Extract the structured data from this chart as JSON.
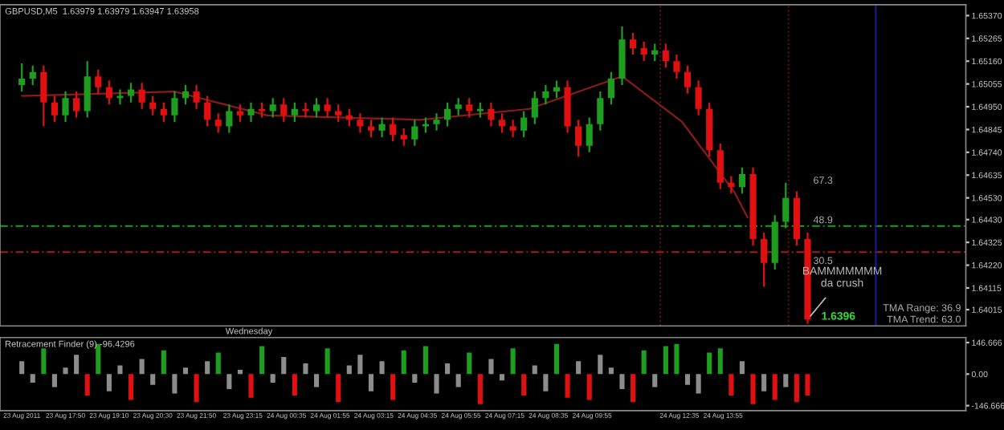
{
  "chart_data": [
    {
      "type": "candlestick",
      "title": "GBPUSD,M5  1.63979 1.63979 1.63947 1.63958",
      "x": [
        "2011-08-23T16:30",
        "2011-08-23T16:50",
        "2011-08-23T17:10",
        "2011-08-23T17:30",
        "2011-08-23T17:50",
        "2011-08-23T18:10",
        "2011-08-23T18:30",
        "2011-08-23T18:50",
        "2011-08-23T19:10",
        "2011-08-23T19:30",
        "2011-08-23T19:50",
        "2011-08-23T20:10",
        "2011-08-23T20:30",
        "2011-08-23T20:50",
        "2011-08-23T21:10",
        "2011-08-23T21:30",
        "2011-08-23T21:50",
        "2011-08-23T22:10",
        "2011-08-23T22:30",
        "2011-08-23T22:50",
        "2011-08-23T23:10",
        "2011-08-23T23:30",
        "2011-08-23T23:50",
        "2011-08-24T00:10",
        "2011-08-24T00:30",
        "2011-08-24T00:50",
        "2011-08-24T01:10",
        "2011-08-24T01:30",
        "2011-08-24T01:50",
        "2011-08-24T02:10",
        "2011-08-24T02:30",
        "2011-08-24T02:50",
        "2011-08-24T03:10",
        "2011-08-24T03:30",
        "2011-08-24T03:50",
        "2011-08-24T04:10",
        "2011-08-24T04:30",
        "2011-08-24T04:50",
        "2011-08-24T05:10",
        "2011-08-24T05:30",
        "2011-08-24T05:50",
        "2011-08-24T06:10",
        "2011-08-24T06:30",
        "2011-08-24T06:50",
        "2011-08-24T07:10",
        "2011-08-24T07:30",
        "2011-08-24T07:50",
        "2011-08-24T08:10",
        "2011-08-24T08:30",
        "2011-08-24T08:50",
        "2011-08-24T09:10",
        "2011-08-24T09:30",
        "2011-08-24T09:50",
        "2011-08-24T10:10",
        "2011-08-24T10:30",
        "2011-08-24T10:50",
        "2011-08-24T11:10",
        "2011-08-24T11:30",
        "2011-08-24T11:50",
        "2011-08-24T12:10",
        "2011-08-24T12:30",
        "2011-08-24T12:50",
        "2011-08-24T13:10",
        "2011-08-24T13:30",
        "2011-08-24T13:50",
        "2011-08-24T14:10",
        "2011-08-24T14:30",
        "2011-08-24T14:50",
        "2011-08-24T15:10",
        "2011-08-24T15:30",
        "2011-08-24T15:50",
        "2011-08-24T16:10",
        "2011-08-24T16:30"
      ],
      "ohlc": [
        [
          1.6505,
          1.6515,
          1.6502,
          1.6508
        ],
        [
          1.6508,
          1.6514,
          1.6505,
          1.6511
        ],
        [
          1.6511,
          1.6514,
          1.6486,
          1.6497
        ],
        [
          1.6497,
          1.65,
          1.6488,
          1.6491
        ],
        [
          1.6491,
          1.6502,
          1.6488,
          1.6499
        ],
        [
          1.6499,
          1.6502,
          1.649,
          1.6493
        ],
        [
          1.6493,
          1.6516,
          1.649,
          1.6509
        ],
        [
          1.6509,
          1.6512,
          1.6501,
          1.6504
        ],
        [
          1.6504,
          1.6507,
          1.6496,
          1.6499
        ],
        [
          1.6499,
          1.6503,
          1.6496,
          1.65
        ],
        [
          1.65,
          1.6506,
          1.6497,
          1.6503
        ],
        [
          1.6503,
          1.6506,
          1.6494,
          1.6497
        ],
        [
          1.6497,
          1.65,
          1.6491,
          1.6494
        ],
        [
          1.6494,
          1.6497,
          1.6488,
          1.6491
        ],
        [
          1.6491,
          1.6502,
          1.6488,
          1.6499
        ],
        [
          1.6499,
          1.6505,
          1.6496,
          1.6502
        ],
        [
          1.6502,
          1.6505,
          1.6494,
          1.6497
        ],
        [
          1.6497,
          1.65,
          1.6486,
          1.6489
        ],
        [
          1.6489,
          1.6492,
          1.6483,
          1.6486
        ],
        [
          1.6486,
          1.6496,
          1.6483,
          1.6493
        ],
        [
          1.6493,
          1.6496,
          1.6488,
          1.6491
        ],
        [
          1.6491,
          1.6497,
          1.6488,
          1.6494
        ],
        [
          1.6494,
          1.6497,
          1.649,
          1.6493
        ],
        [
          1.6493,
          1.6499,
          1.649,
          1.6496
        ],
        [
          1.6496,
          1.6499,
          1.6488,
          1.6491
        ],
        [
          1.6491,
          1.6497,
          1.6488,
          1.6494
        ],
        [
          1.6494,
          1.6497,
          1.649,
          1.6493
        ],
        [
          1.6493,
          1.6499,
          1.649,
          1.6496
        ],
        [
          1.6496,
          1.6499,
          1.649,
          1.6493
        ],
        [
          1.6493,
          1.6496,
          1.6488,
          1.6491
        ],
        [
          1.6491,
          1.6494,
          1.6486,
          1.6489
        ],
        [
          1.6489,
          1.6492,
          1.6483,
          1.6486
        ],
        [
          1.6486,
          1.6489,
          1.6481,
          1.6484
        ],
        [
          1.6484,
          1.649,
          1.6481,
          1.6487
        ],
        [
          1.6487,
          1.649,
          1.6479,
          1.6482
        ],
        [
          1.6482,
          1.6485,
          1.6477,
          1.648
        ],
        [
          1.648,
          1.6489,
          1.6477,
          1.6486
        ],
        [
          1.6486,
          1.649,
          1.6483,
          1.6487
        ],
        [
          1.6487,
          1.6492,
          1.6484,
          1.6489
        ],
        [
          1.6489,
          1.6497,
          1.6486,
          1.6494
        ],
        [
          1.6494,
          1.6499,
          1.6491,
          1.6496
        ],
        [
          1.6496,
          1.6499,
          1.649,
          1.6493
        ],
        [
          1.6493,
          1.6497,
          1.649,
          1.6494
        ],
        [
          1.6494,
          1.6497,
          1.6486,
          1.6489
        ],
        [
          1.6489,
          1.6492,
          1.6483,
          1.6486
        ],
        [
          1.6486,
          1.6489,
          1.6481,
          1.6484
        ],
        [
          1.6484,
          1.6493,
          1.6481,
          1.649
        ],
        [
          1.649,
          1.6502,
          1.6487,
          1.6499
        ],
        [
          1.6499,
          1.6505,
          1.6496,
          1.6502
        ],
        [
          1.6502,
          1.6507,
          1.6499,
          1.6504
        ],
        [
          1.6504,
          1.6507,
          1.6483,
          1.6486
        ],
        [
          1.6486,
          1.6489,
          1.6472,
          1.6477
        ],
        [
          1.6477,
          1.649,
          1.6474,
          1.6487
        ],
        [
          1.6487,
          1.6502,
          1.6484,
          1.6499
        ],
        [
          1.6499,
          1.6511,
          1.6496,
          1.6508
        ],
        [
          1.6508,
          1.6532,
          1.6505,
          1.6526
        ],
        [
          1.6526,
          1.6529,
          1.6519,
          1.6522
        ],
        [
          1.6522,
          1.6525,
          1.6516,
          1.6519
        ],
        [
          1.6519,
          1.6524,
          1.6516,
          1.6521
        ],
        [
          1.6521,
          1.6524,
          1.6513,
          1.6516
        ],
        [
          1.6516,
          1.6519,
          1.6508,
          1.6511
        ],
        [
          1.6511,
          1.6514,
          1.6501,
          1.6504
        ],
        [
          1.6504,
          1.6507,
          1.6491,
          1.6494
        ],
        [
          1.6494,
          1.6497,
          1.6472,
          1.6475
        ],
        [
          1.6475,
          1.6478,
          1.6457,
          1.646
        ],
        [
          1.646,
          1.6463,
          1.6455,
          1.6458
        ],
        [
          1.6458,
          1.6467,
          1.6455,
          1.6464
        ],
        [
          1.6464,
          1.6467,
          1.6431,
          1.6434
        ],
        [
          1.6434,
          1.6437,
          1.6412,
          1.6423
        ],
        [
          1.6423,
          1.6445,
          1.642,
          1.6442
        ],
        [
          1.6442,
          1.646,
          1.6439,
          1.6453
        ],
        [
          1.6453,
          1.6456,
          1.6431,
          1.6434
        ],
        [
          1.6434,
          1.6437,
          1.6395,
          1.6397
        ]
      ],
      "series": [
        {
          "type": "line",
          "color": "#8b1a1a",
          "x": [
            "2011-08-23T16:30",
            "2011-08-23T21:10",
            "2011-08-24T00:00",
            "2011-08-24T04:40",
            "2011-08-24T08:00",
            "2011-08-24T10:50",
            "2011-08-24T12:40",
            "2011-08-24T14:15",
            "2011-08-24T14:40"
          ],
          "values": [
            1.65,
            1.6502,
            1.6491,
            1.6489,
            1.6494,
            1.6509,
            1.6488,
            1.6456,
            1.6444
          ]
        }
      ],
      "xlim": [
        "2011-08-23T15:50",
        "2011-08-24T21:20"
      ],
      "ylim": [
        1.6394,
        1.6542
      ],
      "yticks": [
        {
          "value": 1.6537,
          "label": "1.65370"
        },
        {
          "value": 1.65265,
          "label": "1.65265"
        },
        {
          "value": 1.6516,
          "label": "1.65160"
        },
        {
          "value": 1.65055,
          "label": "1.65055"
        },
        {
          "value": 1.6495,
          "label": "1.64950"
        },
        {
          "value": 1.64845,
          "label": "1.64845"
        },
        {
          "value": 1.6474,
          "label": "1.64740"
        },
        {
          "value": 1.64635,
          "label": "1.64635"
        },
        {
          "value": 1.6453,
          "label": "1.64530"
        },
        {
          "value": 1.6443,
          "label": "1.64430"
        },
        {
          "value": 1.64325,
          "label": "1.64325"
        },
        {
          "value": 1.6422,
          "label": "1.64220"
        },
        {
          "value": 1.64115,
          "label": "1.64115"
        },
        {
          "value": 1.64015,
          "label": "1.64015"
        }
      ],
      "tick_labels": "y",
      "grid": false,
      "ref_lines": [
        {
          "axis": "y",
          "value": 1.644,
          "color": "#1e9e1e",
          "line_style": "dashed"
        },
        {
          "axis": "y",
          "value": 1.6428,
          "color": "#b01818",
          "line_style": "dashed"
        },
        {
          "axis": "x",
          "value": "2011-08-24T12:00",
          "color": "#6a1010",
          "line_style": "dotted"
        },
        {
          "axis": "x",
          "value": "2011-08-24T15:55",
          "color": "#6a1010",
          "line_style": "dotted"
        },
        {
          "axis": "x",
          "value": "2011-08-24T18:35",
          "color": "#1a1aa0",
          "line_style": "solid"
        }
      ],
      "annotations": [
        "Wednesday",
        "67.3",
        "48.9",
        "30.5",
        "TMA Range: 36.9",
        "TMA Trend: 63.0",
        "1.6396",
        {
          "text": "BAMMMMMMM\nda crush",
          "x": "2011-08-24T16:30",
          "y": 1.6397
        }
      ]
    },
    {
      "type": "bar",
      "title": "Retracement Finder (9) -96.4296",
      "x": [
        "2011-08-23T16:30",
        "2011-08-23T16:50",
        "2011-08-23T17:10",
        "2011-08-23T17:30",
        "2011-08-23T17:50",
        "2011-08-23T18:10",
        "2011-08-23T18:30",
        "2011-08-23T18:50",
        "2011-08-23T19:10",
        "2011-08-23T19:30",
        "2011-08-23T19:50",
        "2011-08-23T20:10",
        "2011-08-23T20:30",
        "2011-08-23T20:50",
        "2011-08-23T21:10",
        "2011-08-23T21:30",
        "2011-08-23T21:50",
        "2011-08-23T22:10",
        "2011-08-23T22:30",
        "2011-08-23T22:50",
        "2011-08-23T23:10",
        "2011-08-23T23:30",
        "2011-08-23T23:50",
        "2011-08-24T00:10",
        "2011-08-24T00:30",
        "2011-08-24T00:50",
        "2011-08-24T01:10",
        "2011-08-24T01:30",
        "2011-08-24T01:50",
        "2011-08-24T02:10",
        "2011-08-24T02:30",
        "2011-08-24T02:50",
        "2011-08-24T03:10",
        "2011-08-24T03:30",
        "2011-08-24T03:50",
        "2011-08-24T04:10",
        "2011-08-24T04:30",
        "2011-08-24T04:50",
        "2011-08-24T05:10",
        "2011-08-24T05:30",
        "2011-08-24T05:50",
        "2011-08-24T06:10",
        "2011-08-24T06:30",
        "2011-08-24T06:50",
        "2011-08-24T07:10",
        "2011-08-24T07:30",
        "2011-08-24T07:50",
        "2011-08-24T08:10",
        "2011-08-24T08:30",
        "2011-08-24T08:50",
        "2011-08-24T09:10",
        "2011-08-24T09:30",
        "2011-08-24T09:50",
        "2011-08-24T10:10",
        "2011-08-24T10:30",
        "2011-08-24T10:50",
        "2011-08-24T11:10",
        "2011-08-24T11:30",
        "2011-08-24T11:50",
        "2011-08-24T12:10",
        "2011-08-24T12:30",
        "2011-08-24T12:50",
        "2011-08-24T13:10",
        "2011-08-24T13:30",
        "2011-08-24T13:50",
        "2011-08-24T14:10",
        "2011-08-24T14:30",
        "2011-08-24T14:50",
        "2011-08-24T15:10",
        "2011-08-24T15:30",
        "2011-08-24T15:50",
        "2011-08-24T16:10",
        "2011-08-24T16:30"
      ],
      "values": [
        60,
        -40,
        120,
        -60,
        30,
        90,
        -100,
        140,
        -80,
        40,
        -120,
        70,
        -50,
        110,
        -90,
        30,
        -130,
        60,
        100,
        -70,
        20,
        -110,
        130,
        -40,
        80,
        -100,
        50,
        -60,
        120,
        -130,
        40,
        90,
        -80,
        60,
        -120,
        110,
        -40,
        130,
        -90,
        50,
        -60,
        100,
        -140,
        70,
        -30,
        120,
        -100,
        40,
        -80,
        140,
        -110,
        60,
        -120,
        90,
        30,
        -70,
        -130,
        110,
        -60,
        130,
        140,
        -50,
        -90,
        100,
        120,
        -100,
        60,
        -140,
        -80,
        -120,
        -60,
        -130,
        -100
      ],
      "colors": [
        "#8c8c8c",
        "#8c8c8c",
        "#1e9e1e",
        "#8c8c8c",
        "#8c8c8c",
        "#8c8c8c",
        "#e01010",
        "#1e9e1e",
        "#8c8c8c",
        "#8c8c8c",
        "#e01010",
        "#8c8c8c",
        "#8c8c8c",
        "#1e9e1e",
        "#8c8c8c",
        "#8c8c8c",
        "#e01010",
        "#8c8c8c",
        "#1e9e1e",
        "#8c8c8c",
        "#8c8c8c",
        "#e01010",
        "#1e9e1e",
        "#8c8c8c",
        "#8c8c8c",
        "#e01010",
        "#8c8c8c",
        "#8c8c8c",
        "#1e9e1e",
        "#e01010",
        "#8c8c8c",
        "#8c8c8c",
        "#8c8c8c",
        "#8c8c8c",
        "#e01010",
        "#1e9e1e",
        "#8c8c8c",
        "#1e9e1e",
        "#8c8c8c",
        "#8c8c8c",
        "#8c8c8c",
        "#1e9e1e",
        "#e01010",
        "#8c8c8c",
        "#8c8c8c",
        "#1e9e1e",
        "#e01010",
        "#8c8c8c",
        "#8c8c8c",
        "#1e9e1e",
        "#e01010",
        "#8c8c8c",
        "#e01010",
        "#8c8c8c",
        "#8c8c8c",
        "#8c8c8c",
        "#e01010",
        "#1e9e1e",
        "#8c8c8c",
        "#1e9e1e",
        "#1e9e1e",
        "#8c8c8c",
        "#8c8c8c",
        "#1e9e1e",
        "#1e9e1e",
        "#e01010",
        "#8c8c8c",
        "#e01010",
        "#8c8c8c",
        "#e01010",
        "#8c8c8c",
        "#e01010",
        "#e01010"
      ],
      "xlim": [
        "2011-08-23T15:50",
        "2011-08-24T21:20"
      ],
      "xticks": [
        {
          "value": "2011-08-23T16:30",
          "label": "23 Aug 2011"
        },
        {
          "value": "2011-08-23T17:50",
          "label": "23 Aug 17:50"
        },
        {
          "value": "2011-08-23T19:10",
          "label": "23 Aug 19:10"
        },
        {
          "value": "2011-08-23T20:30",
          "label": "23 Aug 20:30"
        },
        {
          "value": "2011-08-23T21:50",
          "label": "23 Aug 21:50"
        },
        {
          "value": "2011-08-23T23:15",
          "label": "23 Aug 23:15"
        },
        {
          "value": "2011-08-24T00:35",
          "label": "24 Aug 00:35"
        },
        {
          "value": "2011-08-24T01:55",
          "label": "24 Aug 01:55"
        },
        {
          "value": "2011-08-24T03:15",
          "label": "24 Aug 03:15"
        },
        {
          "value": "2011-08-24T04:35",
          "label": "24 Aug 04:35"
        },
        {
          "value": "2011-08-24T05:55",
          "label": "24 Aug 05:55"
        },
        {
          "value": "2011-08-24T07:15",
          "label": "24 Aug 07:15"
        },
        {
          "value": "2011-08-24T08:35",
          "label": "24 Aug 08:35"
        },
        {
          "value": "2011-08-24T09:55",
          "label": "24 Aug 09:55"
        },
        {
          "value": "2011-08-24T12:35",
          "label": "24 Aug 12:35"
        },
        {
          "value": "2011-08-24T13:55",
          "label": "24 Aug 13:55"
        }
      ],
      "ylim": [
        -170,
        170
      ],
      "yticks": [
        146.666,
        {
          "value": 0,
          "label": "0.00"
        },
        -146.666
      ],
      "grid": false
    }
  ]
}
